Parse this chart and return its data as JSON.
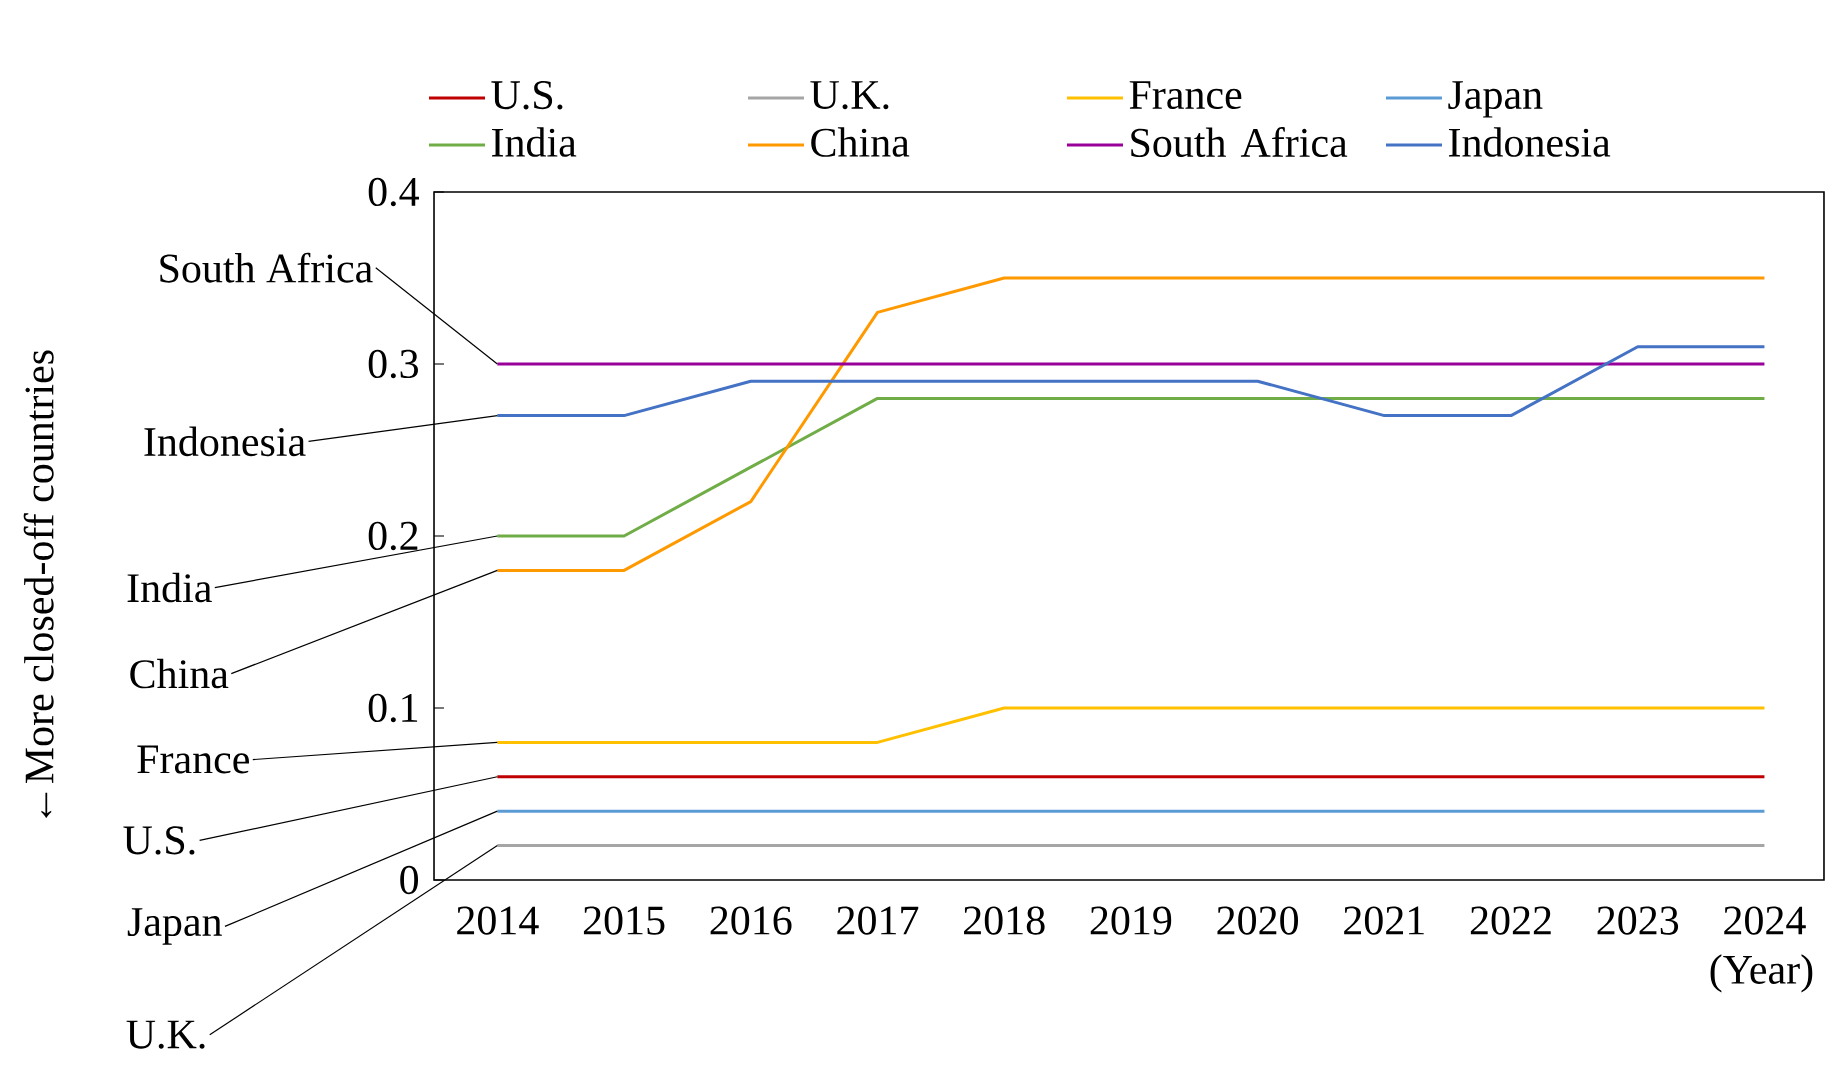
{
  "chart_data": {
    "type": "line",
    "xlabel": "(Year)",
    "annotations": [
      "←More closed-off countries"
    ],
    "categories": [
      "2014",
      "2015",
      "2016",
      "2017",
      "2018",
      "2019",
      "2020",
      "2021",
      "2022",
      "2023",
      "2024"
    ],
    "ylim": [
      0,
      0.4
    ],
    "yticks": [
      0,
      0.1,
      0.2,
      0.3,
      0.4
    ],
    "legend": "top",
    "grid": false,
    "marker": "none",
    "line_style": "solid",
    "series": [
      {
        "name": "U.S.",
        "color": "#c00000",
        "values": [
          0.06,
          0.06,
          0.06,
          0.06,
          0.06,
          0.06,
          0.06,
          0.06,
          0.06,
          0.06,
          0.06
        ]
      },
      {
        "name": "U.K.",
        "color": "#a5a5a5",
        "values": [
          0.02,
          0.02,
          0.02,
          0.02,
          0.02,
          0.02,
          0.02,
          0.02,
          0.02,
          0.02,
          0.02
        ]
      },
      {
        "name": "France",
        "color": "#ffc000",
        "values": [
          0.08,
          0.08,
          0.08,
          0.08,
          0.1,
          0.1,
          0.1,
          0.1,
          0.1,
          0.1,
          0.1
        ]
      },
      {
        "name": "Japan",
        "color": "#5b9bd5",
        "values": [
          0.04,
          0.04,
          0.04,
          0.04,
          0.04,
          0.04,
          0.04,
          0.04,
          0.04,
          0.04,
          0.04
        ]
      },
      {
        "name": "India",
        "color": "#70ad47",
        "values": [
          0.2,
          0.2,
          0.24,
          0.28,
          0.28,
          0.28,
          0.28,
          0.28,
          0.28,
          0.28,
          0.28
        ]
      },
      {
        "name": "China",
        "color": "#ff9900",
        "values": [
          0.18,
          0.18,
          0.22,
          0.33,
          0.35,
          0.35,
          0.35,
          0.35,
          0.35,
          0.35,
          0.35
        ]
      },
      {
        "name": "South Africa",
        "color": "#990099",
        "values": [
          0.3,
          0.3,
          0.3,
          0.3,
          0.3,
          0.3,
          0.3,
          0.3,
          0.3,
          0.3,
          0.3
        ]
      },
      {
        "name": "Indonesia",
        "color": "#4472c4",
        "values": [
          0.27,
          0.27,
          0.29,
          0.29,
          0.29,
          0.29,
          0.29,
          0.27,
          0.27,
          0.31,
          0.31
        ]
      }
    ]
  }
}
